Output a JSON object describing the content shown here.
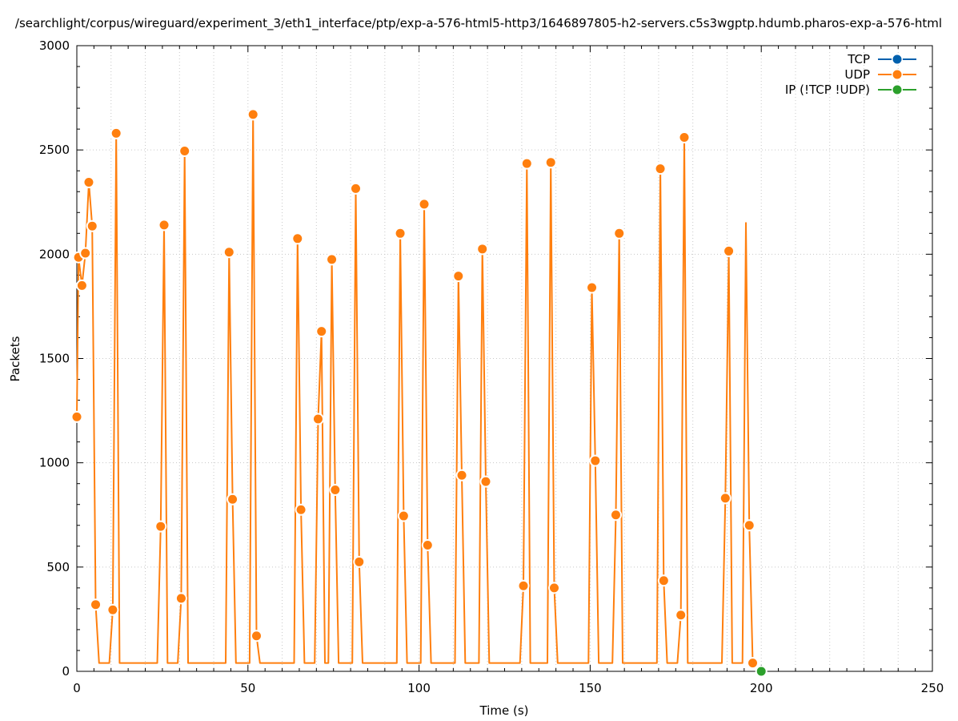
{
  "chart_data": {
    "type": "line",
    "title": "/searchlight/corpus/wireguard/experiment_3/eth1_interface/ptp/exp-a-576-html5-http3/1646897805-h2-servers.c5s3wgptp.hdumb.pharos-exp-a-576-html",
    "xlabel": "Time (s)",
    "ylabel": "Packets",
    "xlim": [
      0,
      250
    ],
    "ylim": [
      0,
      3000
    ],
    "xticks": [
      0,
      50,
      100,
      150,
      200,
      250
    ],
    "yticks": [
      0,
      500,
      1000,
      1500,
      2000,
      2500,
      3000
    ],
    "grid": true,
    "legend_position": "top-right",
    "series": [
      {
        "name": "TCP",
        "color": "#0060ad",
        "x": [],
        "y": []
      },
      {
        "name": "UDP",
        "color": "#ff7f0e",
        "x": [
          0,
          0.5,
          1.5,
          2.5,
          3.5,
          4.5,
          5.5,
          6.5,
          9.5,
          10.5,
          11.5,
          12.5,
          23.5,
          24.5,
          25.5,
          26.5,
          29.5,
          30.5,
          31.5,
          32.5,
          43.5,
          44.5,
          45.5,
          46.5,
          50.5,
          51.5,
          52.5,
          53.5,
          63.5,
          64.5,
          65.5,
          66.5,
          69.5,
          70.5,
          71.5,
          72.5,
          73.5,
          74.5,
          75.5,
          76.5,
          80.5,
          81.5,
          82.5,
          83.5,
          93.5,
          94.5,
          95.5,
          96.5,
          100.5,
          101.5,
          102.5,
          103.5,
          110.5,
          111.5,
          112.5,
          113.5,
          117.5,
          118.5,
          119.5,
          120.5,
          129.5,
          130.5,
          131.5,
          132.5,
          137.5,
          138.5,
          139.5,
          140.5,
          149.5,
          150.5,
          151.5,
          152.5,
          156.5,
          157.5,
          158.5,
          159.5,
          169.5,
          170.5,
          171.5,
          172.5,
          175.5,
          176.5,
          177.5,
          178.5,
          188.5,
          189.5,
          190.5,
          191.5,
          194.5,
          195.5,
          196.5,
          197.5,
          198.5
        ],
        "y": [
          1220,
          1985,
          1850,
          2005,
          2345,
          2135,
          320,
          40,
          40,
          295,
          2580,
          40,
          40,
          695,
          2140,
          40,
          40,
          350,
          2495,
          40,
          40,
          2010,
          825,
          40,
          40,
          2670,
          170,
          40,
          40,
          2075,
          775,
          40,
          40,
          1210,
          1630,
          40,
          40,
          1975,
          870,
          40,
          40,
          2315,
          525,
          40,
          40,
          2100,
          745,
          40,
          40,
          2240,
          605,
          40,
          40,
          1895,
          940,
          40,
          40,
          2025,
          910,
          40,
          40,
          410,
          2435,
          40,
          40,
          2440,
          400,
          40,
          40,
          1840,
          1010,
          40,
          40,
          750,
          2100,
          40,
          40,
          2410,
          435,
          40,
          40,
          270,
          2560,
          40,
          40,
          830,
          2015,
          40,
          40,
          2150,
          700,
          40,
          40
        ],
        "markers_x": [
          0,
          0.5,
          1.5,
          2.5,
          3.5,
          4.5,
          5.5,
          10.5,
          11.5,
          24.5,
          25.5,
          30.5,
          31.5,
          44.5,
          45.5,
          51.5,
          52.5,
          64.5,
          65.5,
          70.5,
          71.5,
          74.5,
          75.5,
          81.5,
          82.5,
          94.5,
          95.5,
          101.5,
          102.5,
          111.5,
          112.5,
          118.5,
          119.5,
          130.5,
          131.5,
          138.5,
          139.5,
          150.5,
          151.5,
          157.5,
          158.5,
          170.5,
          171.5,
          176.5,
          177.5,
          189.5,
          190.5,
          196.5,
          197.5
        ]
      },
      {
        "name": "IP (!TCP  !UDP)",
        "color": "#2ca02c",
        "x": [
          200
        ],
        "y": [
          0
        ]
      }
    ]
  }
}
